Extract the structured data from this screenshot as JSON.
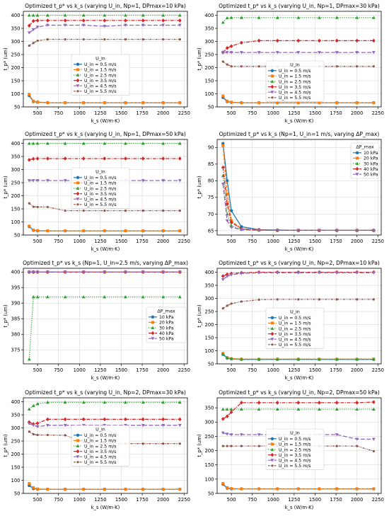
{
  "chart_data": [
    {
      "type": "line",
      "title": "Optimized t_p* vs k_s (varying U_in, Np=1, DPmax=10 kPa)",
      "xlabel": "k_s (W/m·K)",
      "ylabel": "t_p* (um)",
      "xlim": [
        330,
        2290
      ],
      "ylim": [
        50,
        415
      ],
      "xticks": [
        500,
        750,
        1000,
        1250,
        1500,
        1750,
        2000,
        2250
      ],
      "yticks": [
        50,
        100,
        150,
        200,
        250,
        300,
        350,
        400
      ],
      "grid": true,
      "legend": {
        "title": "U_in",
        "placement": "center"
      },
      "x": [
        400,
        450,
        500,
        620,
        830,
        1050,
        1300,
        1550,
        1760,
        2000,
        2200
      ],
      "series": [
        {
          "name": "U_in = 0.5 m/s",
          "values": [
            93,
            70,
            68,
            66,
            66,
            66,
            66,
            66,
            66,
            66,
            66
          ]
        },
        {
          "name": "U_in = 1.5 m/s",
          "values": [
            98,
            72,
            68,
            66,
            66,
            66,
            66,
            66,
            66,
            66,
            66
          ]
        },
        {
          "name": "U_in = 2.5 m/s",
          "values": [
            400,
            400,
            400,
            400,
            400,
            400,
            400,
            400,
            400,
            400,
            400
          ]
        },
        {
          "name": "U_in = 3.5 m/s",
          "values": [
            360,
            378,
            380,
            380,
            380,
            380,
            380,
            380,
            380,
            380,
            380
          ]
        },
        {
          "name": "U_in = 4.5 m/s",
          "values": [
            333,
            345,
            355,
            362,
            362,
            362,
            358,
            362,
            362,
            362,
            362
          ]
        },
        {
          "name": "U_in = 5.5 m/s",
          "values": [
            284,
            294,
            303,
            308,
            308,
            308,
            308,
            308,
            308,
            308,
            308
          ]
        }
      ]
    },
    {
      "type": "line",
      "title": "Optimized t_p* vs k_s (varying U_in, Np=1, DPmax=30 kPa)",
      "xlabel": "k_s (W/m·K)",
      "ylabel": "t_p* (um)",
      "xlim": [
        330,
        2290
      ],
      "ylim": [
        50,
        415
      ],
      "xticks": [
        500,
        750,
        1000,
        1250,
        1500,
        1750,
        2000,
        2250
      ],
      "yticks": [
        50,
        100,
        150,
        200,
        250,
        300,
        350,
        400
      ],
      "grid": true,
      "legend": {
        "title": "U_in",
        "placement": "center"
      },
      "x": [
        400,
        450,
        500,
        620,
        830,
        1050,
        1300,
        1550,
        1760,
        2000,
        2200
      ],
      "series": [
        {
          "name": "U_in = 0.5 m/s",
          "values": [
            86,
            70,
            67,
            66,
            66,
            66,
            66,
            66,
            66,
            66,
            66
          ]
        },
        {
          "name": "U_in = 1.5 m/s",
          "values": [
            92,
            72,
            68,
            66,
            66,
            66,
            66,
            66,
            66,
            66,
            66
          ]
        },
        {
          "name": "U_in = 2.5 m/s",
          "values": [
            373,
            390,
            391,
            391,
            391,
            391,
            391,
            391,
            391,
            391,
            391
          ]
        },
        {
          "name": "U_in = 3.5 m/s",
          "values": [
            258,
            275,
            282,
            295,
            303,
            303,
            303,
            303,
            303,
            303,
            303
          ]
        },
        {
          "name": "U_in = 4.5 m/s",
          "values": [
            258,
            258,
            258,
            258,
            258,
            258,
            258,
            258,
            258,
            258,
            258
          ]
        },
        {
          "name": "U_in = 5.5 m/s",
          "values": [
            223,
            212,
            205,
            205,
            205,
            205,
            205,
            205,
            205,
            205,
            205
          ]
        }
      ]
    },
    {
      "type": "line",
      "title": "Optimized t_p* vs k_s (varying U_in, Np=1, DPmax=50 kPa)",
      "xlabel": "k_s (W/m·K)",
      "ylabel": "t_p* (um)",
      "xlim": [
        330,
        2290
      ],
      "ylim": [
        50,
        415
      ],
      "xticks": [
        500,
        750,
        1000,
        1250,
        1500,
        1750,
        2000,
        2250
      ],
      "yticks": [
        50,
        100,
        150,
        200,
        250,
        300,
        350,
        400
      ],
      "grid": true,
      "legend": {
        "title": "U_in",
        "placement": "center"
      },
      "x": [
        400,
        450,
        500,
        620,
        830,
        1050,
        1300,
        1550,
        1760,
        2000,
        2200
      ],
      "series": [
        {
          "name": "U_in = 0.5 m/s",
          "values": [
            82,
            68,
            66,
            66,
            66,
            66,
            66,
            66,
            66,
            66,
            66
          ]
        },
        {
          "name": "U_in = 1.5 m/s",
          "values": [
            84,
            69,
            67,
            66,
            66,
            66,
            66,
            66,
            66,
            66,
            66
          ]
        },
        {
          "name": "U_in = 2.5 m/s",
          "values": [
            400,
            400,
            400,
            400,
            400,
            400,
            400,
            400,
            400,
            400,
            400
          ]
        },
        {
          "name": "U_in = 3.5 m/s",
          "values": [
            337,
            341,
            342,
            342,
            342,
            342,
            342,
            342,
            342,
            342,
            342
          ]
        },
        {
          "name": "U_in = 4.5 m/s",
          "values": [
            258,
            258,
            258,
            258,
            258,
            258,
            258,
            258,
            258,
            258,
            258
          ]
        },
        {
          "name": "U_in = 5.5 m/s",
          "values": [
            171,
            158,
            157,
            157,
            143,
            143,
            143,
            143,
            143,
            143,
            143
          ]
        }
      ]
    },
    {
      "type": "line",
      "title": "Optimized t_p* vs k_s (Np=1, U_in=1 m/s, varying ΔP_max)",
      "xlabel": "k_s (W/m·K)",
      "ylabel": "t_p* (um)",
      "xlim": [
        330,
        2290
      ],
      "ylim": [
        63.7,
        92.4
      ],
      "xticks": [
        500,
        750,
        1000,
        1250,
        1500,
        1750,
        2000,
        2250
      ],
      "yticks": [
        65,
        70,
        75,
        80,
        85,
        90
      ],
      "grid": true,
      "legend": {
        "title": "ΔP_max",
        "placement": "upper right"
      },
      "x": [
        400,
        450,
        500,
        620,
        830,
        1050,
        1300,
        1550,
        1760,
        2000,
        2200
      ],
      "series": [
        {
          "name": "10 kPa",
          "values": [
            91.2,
            80,
            71,
            66.2,
            65.3,
            65.2,
            65.1,
            65.1,
            65.1,
            65.1,
            65.1
          ]
        },
        {
          "name": "20 kPa",
          "values": [
            90.5,
            76,
            68,
            65.6,
            65.2,
            65.1,
            65.1,
            65.1,
            65.1,
            65.1,
            65.1
          ]
        },
        {
          "name": "30 kPa",
          "values": [
            81.5,
            70,
            66.5,
            65.4,
            65.2,
            65.1,
            65.1,
            65.1,
            65.1,
            65.1,
            65.1
          ]
        },
        {
          "name": "40 kPa",
          "values": [
            84,
            73,
            67.5,
            65.6,
            65.2,
            65.1,
            65.1,
            65.1,
            65.1,
            65.1,
            65.1
          ]
        },
        {
          "name": "50 kPa",
          "values": [
            79,
            68,
            66,
            65.3,
            65.1,
            65.1,
            65.1,
            65.1,
            65.1,
            65.1,
            65.1
          ]
        }
      ]
    },
    {
      "type": "line",
      "title": "Optimized t_p* vs k_s (Np=1, U_in=2.5 m/s, varying ΔP_max)",
      "xlabel": "k_s (W/m·K)",
      "ylabel": "t_p* (um)",
      "xlim": [
        330,
        2290
      ],
      "ylim": [
        370.5,
        401.2
      ],
      "xticks": [
        500,
        750,
        1000,
        1250,
        1500,
        1750,
        2000,
        2250
      ],
      "yticks": [
        375,
        380,
        385,
        390,
        395,
        400
      ],
      "grid": true,
      "legend": {
        "title": "ΔP_max",
        "placement": "lower right"
      },
      "x": [
        400,
        450,
        500,
        620,
        830,
        1050,
        1300,
        1550,
        1760,
        2000,
        2200
      ],
      "series": [
        {
          "name": "10 kPa",
          "values": [
            400,
            400,
            400,
            400,
            400,
            400,
            400,
            400,
            400,
            400,
            400
          ]
        },
        {
          "name": "20 kPa",
          "values": [
            400,
            400,
            400,
            400,
            400,
            400,
            400,
            400,
            400,
            400,
            400
          ]
        },
        {
          "name": "30 kPa",
          "values": [
            372,
            392,
            392,
            392,
            392,
            392,
            392,
            392,
            392,
            392,
            392
          ]
        },
        {
          "name": "40 kPa",
          "values": [
            400,
            400,
            400,
            400,
            400,
            400,
            400,
            400,
            400,
            400,
            400
          ]
        },
        {
          "name": "50 kPa",
          "values": [
            400,
            400,
            400,
            400,
            400,
            400,
            400,
            400,
            400,
            400,
            400
          ]
        }
      ]
    },
    {
      "type": "line",
      "title": "Optimized t_p* vs k_s (varying U_in, Np=2, DPmax=10 kPa)",
      "xlabel": "k_s (W/m·K)",
      "ylabel": "t_p* (um)",
      "xlim": [
        330,
        2290
      ],
      "ylim": [
        50,
        415
      ],
      "xticks": [
        500,
        750,
        1000,
        1250,
        1500,
        1750,
        2000,
        2250
      ],
      "yticks": [
        50,
        100,
        150,
        200,
        250,
        300,
        350,
        400
      ],
      "grid": true,
      "legend": {
        "title": "U_in",
        "placement": "center"
      },
      "x": [
        400,
        450,
        500,
        620,
        830,
        1050,
        1300,
        1550,
        1760,
        2000,
        2200
      ],
      "series": [
        {
          "name": "U_in = 0.5 m/s",
          "values": [
            86,
            72,
            69,
            67,
            67,
            67,
            67,
            67,
            67,
            67,
            67
          ]
        },
        {
          "name": "U_in = 1.5 m/s",
          "values": [
            90,
            74,
            70,
            68,
            68,
            68,
            68,
            68,
            68,
            68,
            68
          ]
        },
        {
          "name": "U_in = 2.5 m/s",
          "values": [
            88,
            73,
            70,
            68,
            68,
            68,
            68,
            68,
            68,
            68,
            68
          ]
        },
        {
          "name": "U_in = 3.5 m/s",
          "values": [
            385,
            392,
            395,
            398,
            400,
            400,
            400,
            400,
            400,
            400,
            400
          ]
        },
        {
          "name": "U_in = 4.5 m/s",
          "values": [
            372,
            384,
            390,
            395,
            398,
            398,
            398,
            398,
            398,
            398,
            398
          ]
        },
        {
          "name": "U_in = 5.5 m/s",
          "values": [
            262,
            272,
            280,
            288,
            295,
            296,
            296,
            296,
            296,
            296,
            296
          ]
        }
      ]
    },
    {
      "type": "line",
      "title": "Optimized t_p* vs k_s (varying U_in, Np=2, DPmax=30 kPa)",
      "xlabel": "k_s (W/m·K)",
      "ylabel": "t_p* (um)",
      "xlim": [
        330,
        2290
      ],
      "ylim": [
        50,
        415
      ],
      "xticks": [
        500,
        750,
        1000,
        1250,
        1500,
        1750,
        2000,
        2250
      ],
      "yticks": [
        50,
        100,
        150,
        200,
        250,
        300,
        350,
        400
      ],
      "grid": true,
      "legend": {
        "title": "U_in",
        "placement": "lower center"
      },
      "x": [
        400,
        450,
        500,
        620,
        830,
        1050,
        1300,
        1550,
        1760,
        2000,
        2200
      ],
      "series": [
        {
          "name": "U_in = 0.5 m/s",
          "values": [
            80,
            68,
            66,
            66,
            66,
            66,
            66,
            66,
            66,
            66,
            66
          ]
        },
        {
          "name": "U_in = 1.5 m/s",
          "values": [
            88,
            72,
            67,
            66,
            66,
            66,
            66,
            66,
            66,
            66,
            66
          ]
        },
        {
          "name": "U_in = 2.5 m/s",
          "values": [
            372,
            385,
            392,
            398,
            398,
            398,
            398,
            398,
            398,
            398,
            398
          ]
        },
        {
          "name": "U_in = 3.5 m/s",
          "values": [
            322,
            315,
            318,
            333,
            333,
            333,
            333,
            333,
            333,
            333,
            333
          ]
        },
        {
          "name": "U_in = 4.5 m/s",
          "values": [
            316,
            310,
            305,
            310,
            310,
            310,
            310,
            310,
            310,
            310,
            310
          ]
        },
        {
          "name": "U_in = 5.5 m/s",
          "values": [
            286,
            276,
            273,
            273,
            272,
            246,
            240,
            240,
            240,
            240,
            240
          ]
        }
      ]
    },
    {
      "type": "line",
      "title": "Optimized t_p* vs k_s (varying U_in, Np=2, DPmax=50 kPa)",
      "xlabel": "k_s (W/m·K)",
      "ylabel": "t_p* (um)",
      "xlim": [
        330,
        2290
      ],
      "ylim": [
        50,
        385
      ],
      "xticks": [
        500,
        750,
        1000,
        1250,
        1500,
        1750,
        2000,
        2250
      ],
      "yticks": [
        50,
        100,
        150,
        200,
        250,
        300,
        350
      ],
      "grid": true,
      "legend": {
        "title": "U_in",
        "placement": "lower center"
      },
      "x": [
        400,
        450,
        500,
        620,
        830,
        1050,
        1300,
        1550,
        1760,
        2000,
        2200
      ],
      "series": [
        {
          "name": "U_in = 0.5 m/s",
          "values": [
            82,
            68,
            66,
            66,
            66,
            66,
            66,
            66,
            66,
            66,
            66
          ]
        },
        {
          "name": "U_in = 1.5 m/s",
          "values": [
            85,
            70,
            67,
            66,
            66,
            66,
            66,
            66,
            66,
            66,
            66
          ]
        },
        {
          "name": "U_in = 2.5 m/s",
          "values": [
            345,
            345,
            345,
            345,
            345,
            345,
            345,
            345,
            345,
            345,
            345
          ]
        },
        {
          "name": "U_in = 3.5 m/s",
          "values": [
            311,
            320,
            335,
            368,
            368,
            368,
            368,
            368,
            368,
            368,
            370
          ]
        },
        {
          "name": "U_in = 4.5 m/s",
          "values": [
            262,
            258,
            256,
            256,
            256,
            256,
            256,
            256,
            256,
            240,
            240
          ]
        },
        {
          "name": "U_in = 5.5 m/s",
          "values": [
            216,
            216,
            216,
            216,
            216,
            216,
            216,
            216,
            216,
            216,
            198
          ]
        }
      ]
    }
  ],
  "colors": {
    "blue": "#1f77b4",
    "orange": "#ff7f0e",
    "green": "#2ca02c",
    "red": "#d62728",
    "purple": "#9467bd",
    "brown": "#8c564b"
  }
}
